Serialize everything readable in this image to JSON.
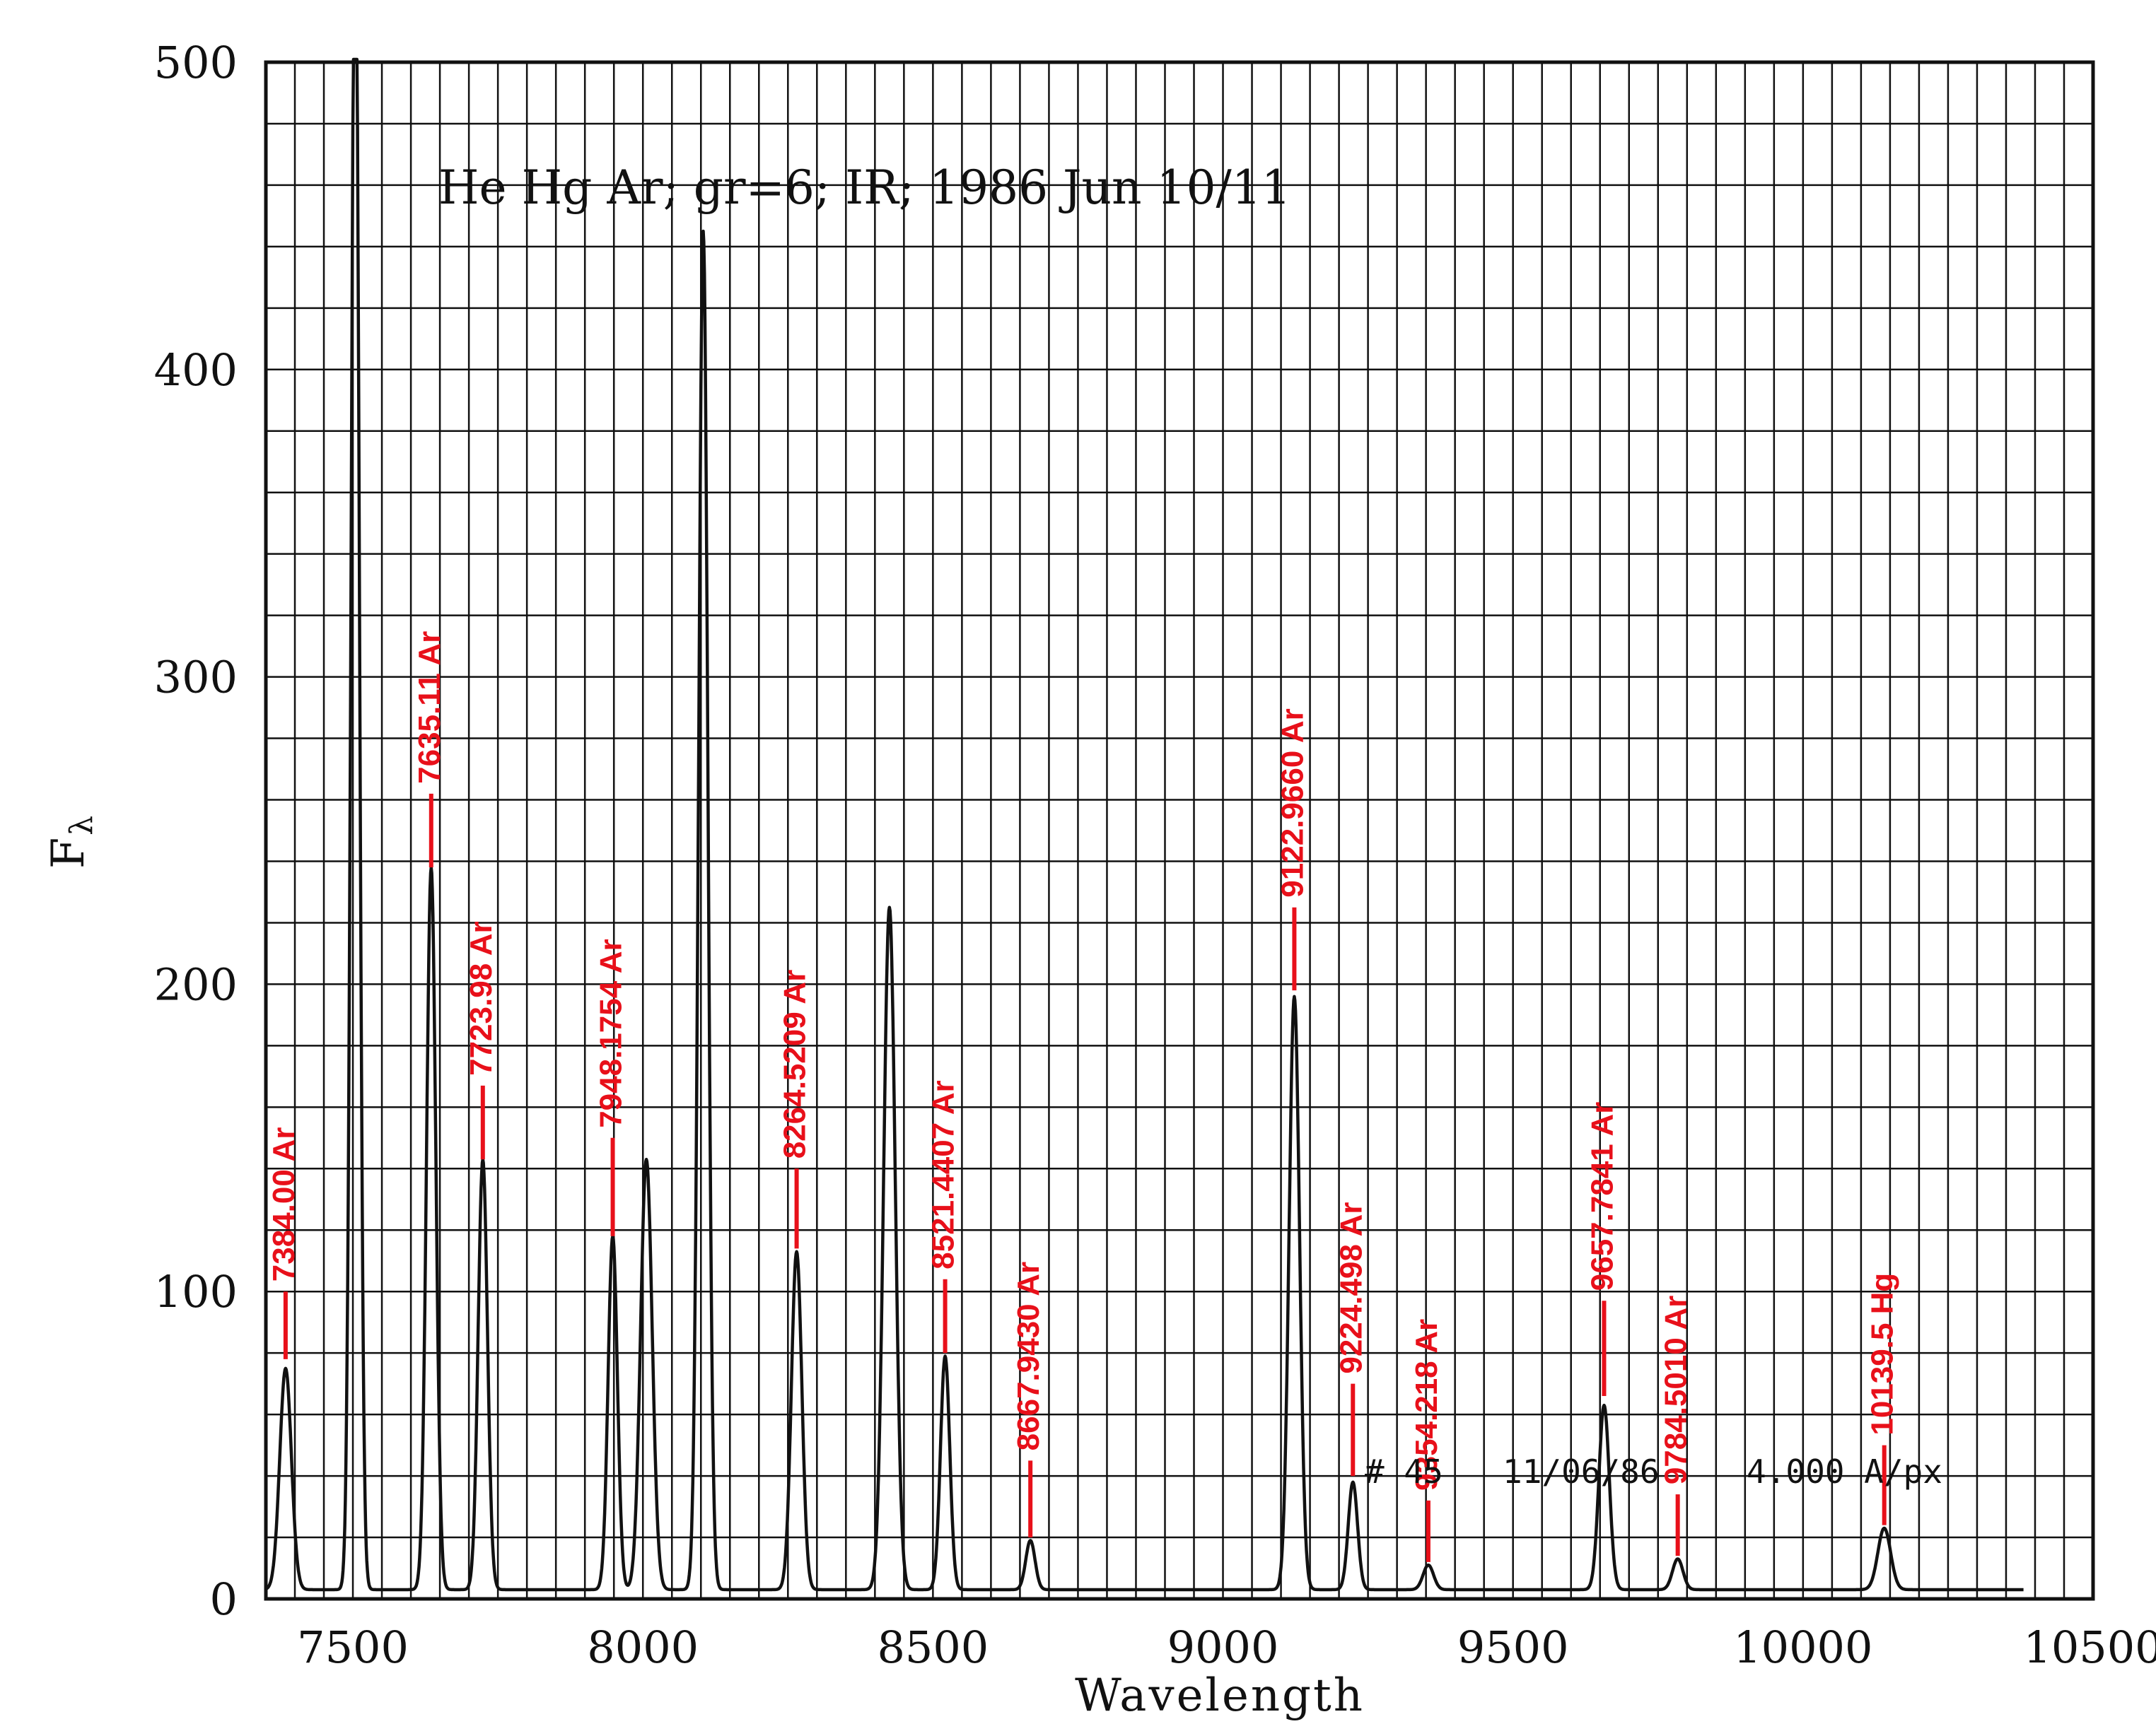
{
  "chart_data": {
    "type": "line",
    "title": "He Hg Ar; gr=6; IR; 1986 Jun 10/11",
    "xlabel": "Wavelength",
    "ylabel": "F",
    "ylabel_sub": "λ",
    "xlim": [
      7350,
      10500
    ],
    "ylim": [
      0,
      500
    ],
    "x_ticks": [
      7500,
      8000,
      8500,
      9000,
      9500,
      10000,
      10500
    ],
    "y_ticks": [
      0,
      100,
      200,
      300,
      400,
      500
    ],
    "grid": true,
    "grid_minor_x": 50,
    "grid_minor_y": 20,
    "baseline": 3,
    "peaks": [
      {
        "x": 7384,
        "y": 72,
        "w": 10
      },
      {
        "x": 7504,
        "y": 560,
        "w": 7
      },
      {
        "x": 7635,
        "y": 235,
        "w": 8
      },
      {
        "x": 7724,
        "y": 140,
        "w": 8
      },
      {
        "x": 7948,
        "y": 115,
        "w": 8
      },
      {
        "x": 8006,
        "y": 140,
        "w": 10
      },
      {
        "x": 8104,
        "y": 442,
        "w": 8
      },
      {
        "x": 8265,
        "y": 110,
        "w": 9
      },
      {
        "x": 8425,
        "y": 222,
        "w": 10
      },
      {
        "x": 8521,
        "y": 76,
        "w": 8
      },
      {
        "x": 8668,
        "y": 16,
        "w": 8
      },
      {
        "x": 9123,
        "y": 193,
        "w": 9
      },
      {
        "x": 9224,
        "y": 35,
        "w": 8
      },
      {
        "x": 9354,
        "y": 8,
        "w": 9
      },
      {
        "x": 9657,
        "y": 60,
        "w": 9
      },
      {
        "x": 9784,
        "y": 10,
        "w": 9
      },
      {
        "x": 10140,
        "y": 20,
        "w": 11
      }
    ],
    "annotations": [
      {
        "text": "7384.00 Ar",
        "x": 7384,
        "y0": 78,
        "y1": 100
      },
      {
        "text": "7635.11 Ar",
        "x": 7635,
        "y0": 238,
        "y1": 262
      },
      {
        "text": "7723.98 Ar",
        "x": 7724,
        "y0": 143,
        "y1": 167
      },
      {
        "text": "7948.1754 Ar",
        "x": 7948,
        "y0": 118,
        "y1": 150
      },
      {
        "text": "8264.5209 Ar",
        "x": 8265,
        "y0": 114,
        "y1": 140
      },
      {
        "text": "8521.4407 Ar",
        "x": 8521,
        "y0": 80,
        "y1": 104
      },
      {
        "text": "8667.9430 Ar",
        "x": 8668,
        "y0": 20,
        "y1": 45
      },
      {
        "text": "9122.9660 Ar",
        "x": 9123,
        "y0": 198,
        "y1": 225
      },
      {
        "text": "9224.498 Ar",
        "x": 9224,
        "y0": 40,
        "y1": 70
      },
      {
        "text": "9354.218 Ar",
        "x": 9354,
        "y0": 12,
        "y1": 32
      },
      {
        "text": "9657.7841 Ar",
        "x": 9657,
        "y0": 66,
        "y1": 97
      },
      {
        "text": "9784.5010 Ar",
        "x": 9784,
        "y0": 14,
        "y1": 34
      },
      {
        "text": "10139.5 Hg",
        "x": 10140,
        "y0": 24,
        "y1": 50
      }
    ],
    "footer": {
      "number": "#  45",
      "date": "11/06/86",
      "dispersion": "4.000 A/px"
    },
    "colors": {
      "spectrum": "#111111",
      "grid": "#111111",
      "annotation": "#e8101a"
    }
  }
}
